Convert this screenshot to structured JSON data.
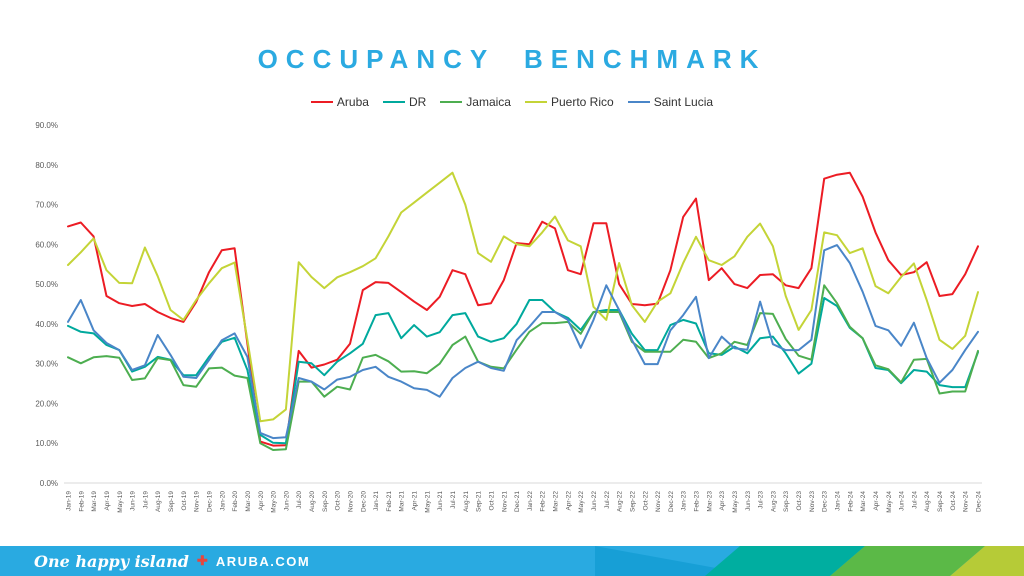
{
  "title": "OCCUPANCY BENCHMARK",
  "title_color": "#2BAAE1",
  "footer": {
    "tagline": "One happy island",
    "plus_icon": "✚",
    "site": "ARUBA.COM",
    "bar_color": "#29AAE1",
    "bar_color_dark": "#179FD6",
    "band_teal": "#00AEA0",
    "band_green": "#5BB947",
    "band_yellow_green": "#B6CB37"
  },
  "chart_data": {
    "type": "line",
    "title": "OCCUPANCY BENCHMARK",
    "xlabel": "",
    "ylabel": "",
    "ylim": [
      0,
      90
    ],
    "grid": false,
    "legend_position": "top",
    "y_tick_labels": [
      "0.0%",
      "10.0%",
      "20.0%",
      "30.0%",
      "40.0%",
      "50.0%",
      "60.0%",
      "70.0%",
      "80.0%",
      "90.0%"
    ],
    "x": [
      "Jan-19",
      "Feb-19",
      "Mar-19",
      "Apr-19",
      "May-19",
      "Jun-19",
      "Jul-19",
      "Aug-19",
      "Sep-19",
      "Oct-19",
      "Nov-19",
      "Dec-19",
      "Jan-20",
      "Feb-20",
      "Mar-20",
      "Apr-20",
      "May-20",
      "Jun-20",
      "Jul-20",
      "Aug-20",
      "Sep-20",
      "Oct-20",
      "Nov-20",
      "Dec-20",
      "Jan-21",
      "Feb-21",
      "Mar-21",
      "Apr-21",
      "May-21",
      "Jun-21",
      "Jul-21",
      "Aug-21",
      "Sep-21",
      "Oct-21",
      "Nov-21",
      "Dec-21",
      "Jan-22",
      "Feb-22",
      "Mar-22",
      "Apr-22",
      "May-22",
      "Jun-22",
      "Jul-22",
      "Aug-22",
      "Sep-22",
      "Oct-22",
      "Nov-22",
      "Dec-22",
      "Jan-23",
      "Feb-23",
      "Mar-23",
      "Apr-23",
      "May-23",
      "Jun-23",
      "Jul-23",
      "Aug-23",
      "Sep-23",
      "Oct-23",
      "Nov-23",
      "Dec-23",
      "Jan-24",
      "Feb-24",
      "Mar-24",
      "Apr-24",
      "May-24",
      "Jun-24",
      "Jul-24",
      "Aug-24",
      "Sep-24",
      "Oct-24",
      "Nov-24",
      "Dec-24"
    ],
    "series": [
      {
        "name": "Aruba",
        "color": "#EC1C24",
        "values": [
          64.5,
          65.5,
          62.0,
          47.0,
          45.2,
          44.5,
          45.0,
          43.0,
          41.5,
          40.5,
          45.5,
          53.0,
          58.5,
          59.0,
          35.0,
          10.4,
          9.4,
          9.5,
          33.2,
          29.0,
          29.8,
          31.0,
          35.0,
          48.5,
          50.5,
          50.3,
          48.0,
          45.6,
          43.5,
          46.8,
          53.5,
          52.5,
          44.7,
          45.2,
          51.0,
          60.3,
          60.0,
          65.7,
          64.0,
          53.5,
          52.5,
          65.3,
          65.3,
          50.0,
          45.0,
          44.7,
          45.1,
          53.5,
          66.9,
          71.5,
          51.0,
          54.0,
          50.0,
          49.0,
          52.3,
          52.5,
          49.7,
          49.0,
          54.0,
          76.5,
          77.5,
          78.0,
          72.0,
          63.0,
          56.0,
          52.3,
          53.0,
          55.5,
          47.0,
          47.5,
          52.5,
          59.5
        ]
      },
      {
        "name": "DR",
        "color": "#00A99D",
        "values": [
          39.5,
          38.0,
          37.6,
          34.7,
          33.4,
          28.0,
          29.2,
          31.7,
          31.0,
          27.1,
          27.1,
          31.7,
          35.5,
          36.5,
          28.4,
          12.1,
          10.1,
          10.0,
          30.5,
          30.1,
          27.1,
          30.5,
          32.6,
          35.0,
          42.2,
          42.7,
          36.4,
          39.7,
          36.8,
          37.9,
          42.2,
          42.7,
          36.8,
          35.5,
          36.4,
          40.0,
          46.0,
          46.0,
          43.0,
          41.5,
          38.5,
          43.0,
          43.5,
          43.5,
          37.5,
          33.4,
          33.4,
          39.7,
          41.0,
          40.1,
          32.6,
          32.2,
          34.3,
          32.6,
          36.4,
          36.8,
          32.6,
          27.5,
          30.0,
          46.5,
          44.5,
          39.0,
          36.4,
          28.9,
          28.4,
          25.1,
          28.4,
          28.0,
          24.6,
          24.1,
          24.1,
          32.9
        ]
      },
      {
        "name": "Jamaica",
        "color": "#4DAE50",
        "values": [
          31.6,
          30.1,
          31.6,
          31.9,
          31.5,
          25.9,
          26.3,
          31.4,
          30.9,
          24.6,
          24.2,
          28.8,
          29.0,
          27.0,
          26.4,
          10.0,
          8.3,
          8.5,
          25.5,
          25.5,
          21.7,
          24.2,
          23.5,
          31.5,
          32.2,
          30.6,
          28.0,
          28.1,
          27.6,
          30.0,
          34.7,
          36.8,
          30.5,
          29.2,
          28.8,
          33.5,
          38.0,
          40.2,
          40.2,
          40.5,
          37.5,
          43.0,
          43.0,
          43.0,
          35.5,
          33.0,
          33.0,
          33.0,
          36.0,
          35.5,
          31.4,
          32.6,
          35.5,
          34.7,
          42.7,
          42.5,
          36.2,
          32.0,
          31.0,
          49.7,
          45.2,
          39.3,
          36.4,
          29.6,
          28.6,
          25.3,
          31.0,
          31.2,
          22.5,
          23.0,
          23.0,
          33.2
        ]
      },
      {
        "name": "Puerto Rico",
        "color": "#C4D437",
        "values": [
          54.8,
          58.0,
          61.5,
          53.5,
          50.3,
          50.2,
          59.2,
          52.0,
          43.5,
          41.0,
          46.0,
          50.2,
          54.0,
          55.4,
          36.0,
          15.5,
          16.0,
          18.5,
          55.5,
          51.8,
          49.0,
          51.7,
          53.0,
          54.5,
          56.5,
          62.0,
          68.0,
          70.5,
          73.0,
          75.5,
          78.0,
          70.0,
          57.8,
          55.6,
          62.0,
          60.0,
          59.5,
          63.0,
          67.0,
          61.0,
          59.5,
          44.3,
          41.0,
          55.3,
          44.7,
          40.5,
          45.6,
          47.7,
          55.3,
          61.9,
          56.0,
          54.8,
          57.0,
          61.9,
          65.2,
          59.5,
          47.0,
          38.5,
          43.5,
          63.0,
          62.3,
          57.8,
          59.0,
          49.5,
          47.7,
          51.8,
          55.2,
          46.0,
          36.0,
          33.7,
          37.0,
          48.0
        ]
      },
      {
        "name": "Saint Lucia",
        "color": "#4A86C8",
        "values": [
          40.5,
          46.0,
          38.4,
          35.2,
          33.4,
          28.4,
          29.6,
          37.2,
          32.2,
          26.7,
          26.4,
          30.9,
          35.9,
          37.6,
          31.7,
          12.6,
          11.3,
          11.5,
          26.4,
          25.5,
          23.5,
          26.0,
          26.7,
          28.4,
          29.2,
          26.7,
          25.5,
          23.8,
          23.4,
          21.7,
          26.4,
          28.9,
          30.5,
          28.9,
          28.2,
          35.9,
          39.3,
          43.0,
          43.0,
          41.0,
          34.0,
          41.0,
          49.7,
          43.5,
          36.0,
          29.9,
          29.9,
          38.4,
          42.2,
          46.8,
          31.4,
          36.8,
          33.9,
          33.5,
          45.6,
          34.9,
          33.4,
          33.4,
          36.0,
          58.5,
          59.8,
          55.3,
          48.1,
          39.5,
          38.4,
          34.5,
          40.3,
          31.4,
          25.2,
          28.4,
          33.4,
          38.0
        ]
      }
    ]
  }
}
